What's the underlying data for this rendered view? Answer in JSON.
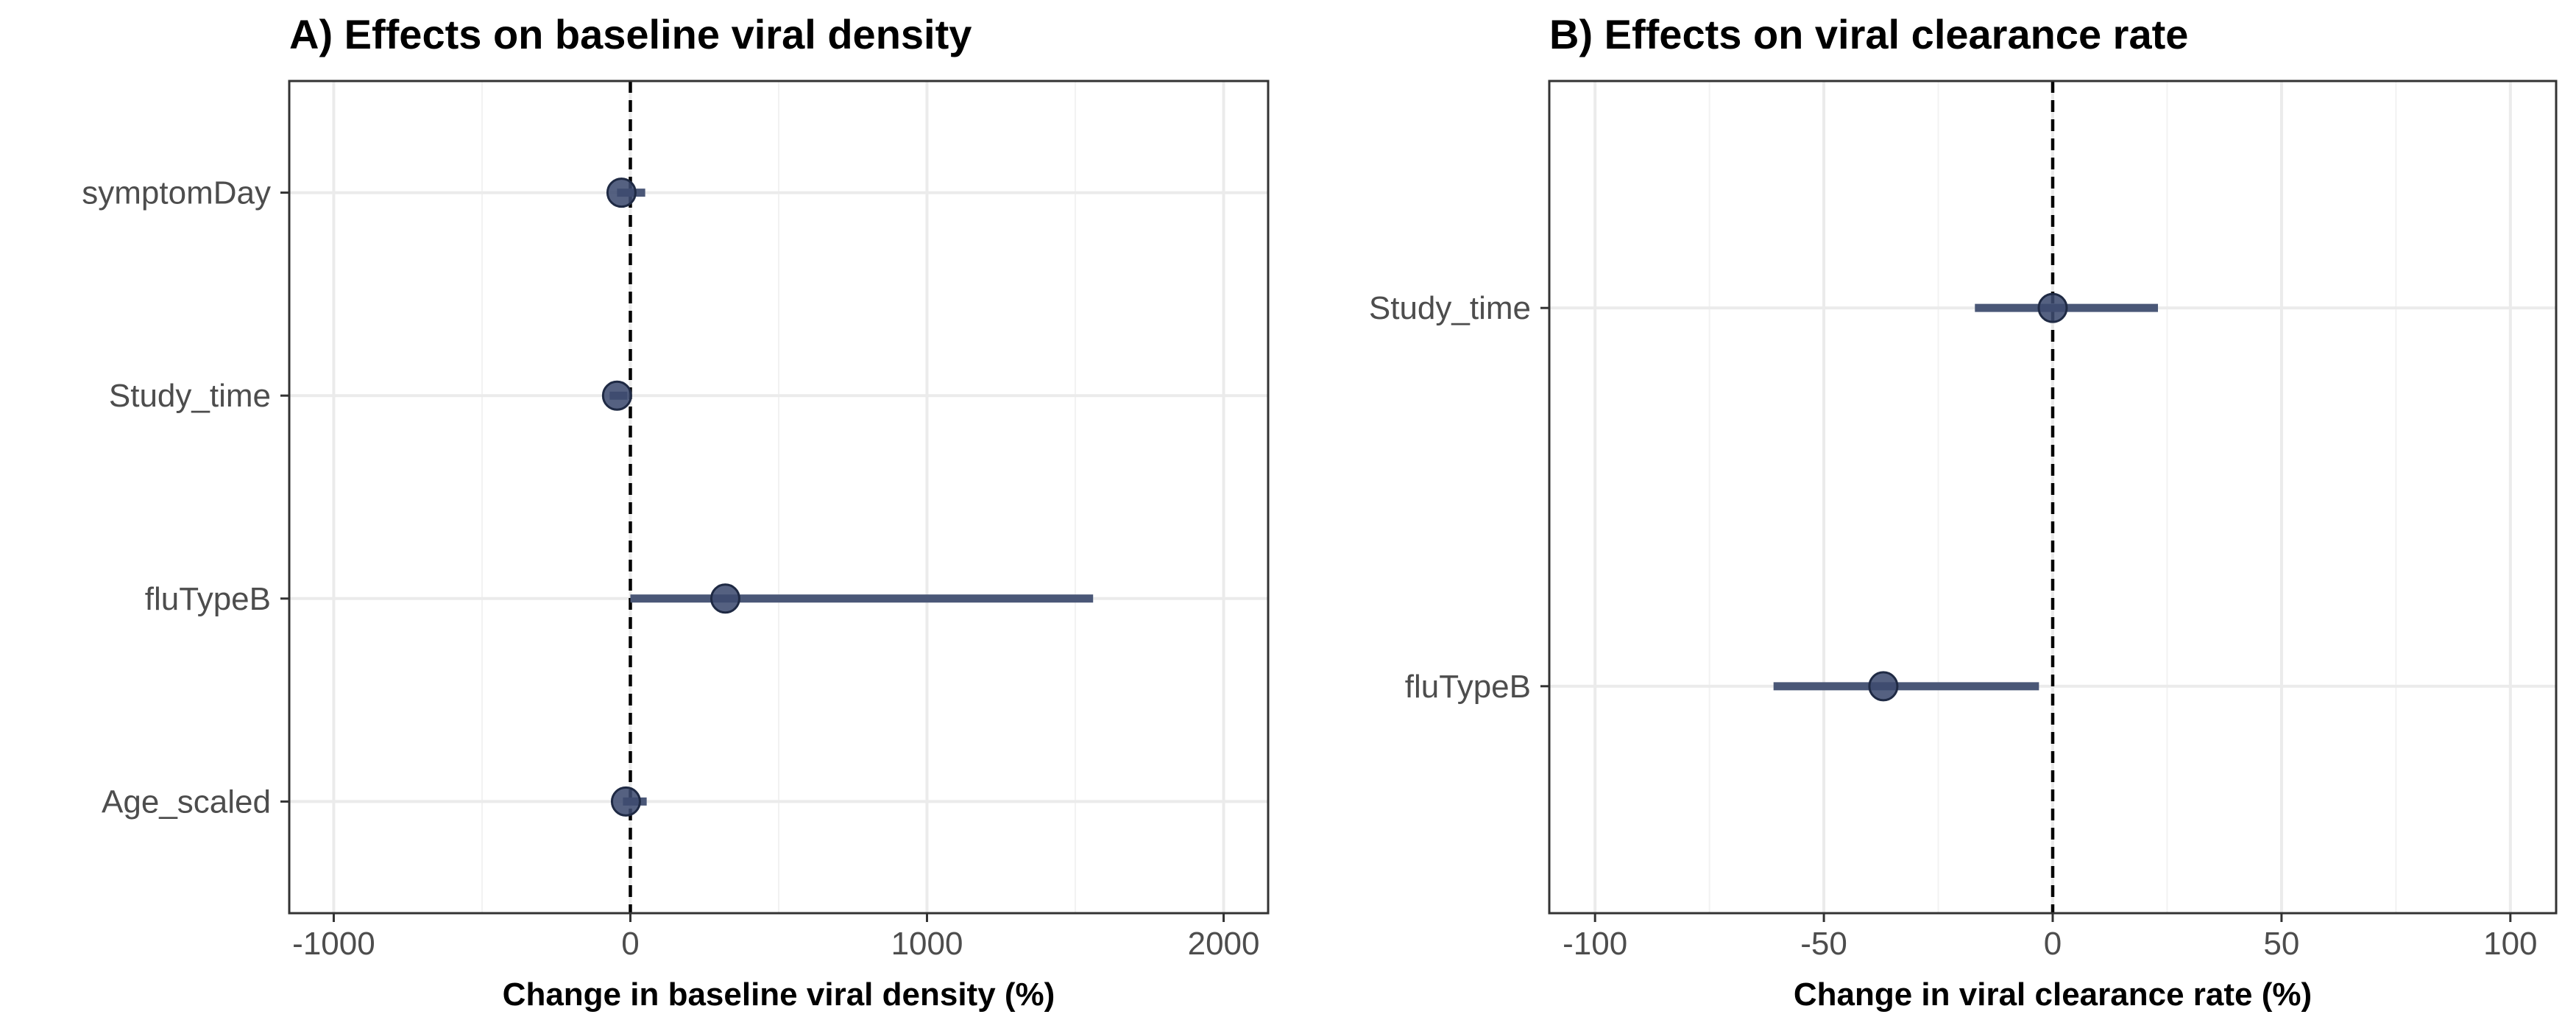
{
  "chart_data": [
    {
      "type": "forest",
      "title": "A) Effects on baseline viral density",
      "xlabel": "Change in baseline viral density (%)",
      "ylabel": "",
      "xlim": [
        -1150,
        2150
      ],
      "ylim": [
        0.45,
        4.55
      ],
      "xticks": [
        -1000,
        0,
        1000,
        2000
      ],
      "xtick_labels": [
        "-1000",
        "0",
        "1000",
        "2000"
      ],
      "xminor": [
        -500,
        500,
        1500
      ],
      "reference_line": 0,
      "categories": [
        "Age_scaled",
        "fluTypeB",
        "Study_time",
        "symptomDay"
      ],
      "estimates": [
        -15,
        320,
        -45,
        -30
      ],
      "lower": [
        -25,
        0,
        -70,
        -45
      ],
      "upper": [
        55,
        1560,
        -10,
        50
      ],
      "grid": true,
      "legend": "none",
      "colors": {
        "point": "#3d4b70",
        "interval": "#4a5777"
      }
    },
    {
      "type": "forest",
      "title": "B) Effects on viral clearance rate",
      "xlabel": "Change in viral clearance rate (%)",
      "ylabel": "",
      "xlim": [
        -110,
        110
      ],
      "ylim": [
        0.4,
        2.6
      ],
      "xticks": [
        -100,
        -50,
        0,
        50,
        100
      ],
      "xtick_labels": [
        "-100",
        "-50",
        "0",
        "50",
        "100"
      ],
      "xminor": [
        -75,
        -25,
        25,
        75
      ],
      "reference_line": 0,
      "categories": [
        "fluTypeB",
        "Study_time"
      ],
      "estimates": [
        -37,
        0
      ],
      "lower": [
        -61,
        -17
      ],
      "upper": [
        -3,
        23
      ],
      "grid": true,
      "legend": "none",
      "colors": {
        "point": "#3d4b70",
        "interval": "#4a5777"
      }
    }
  ]
}
